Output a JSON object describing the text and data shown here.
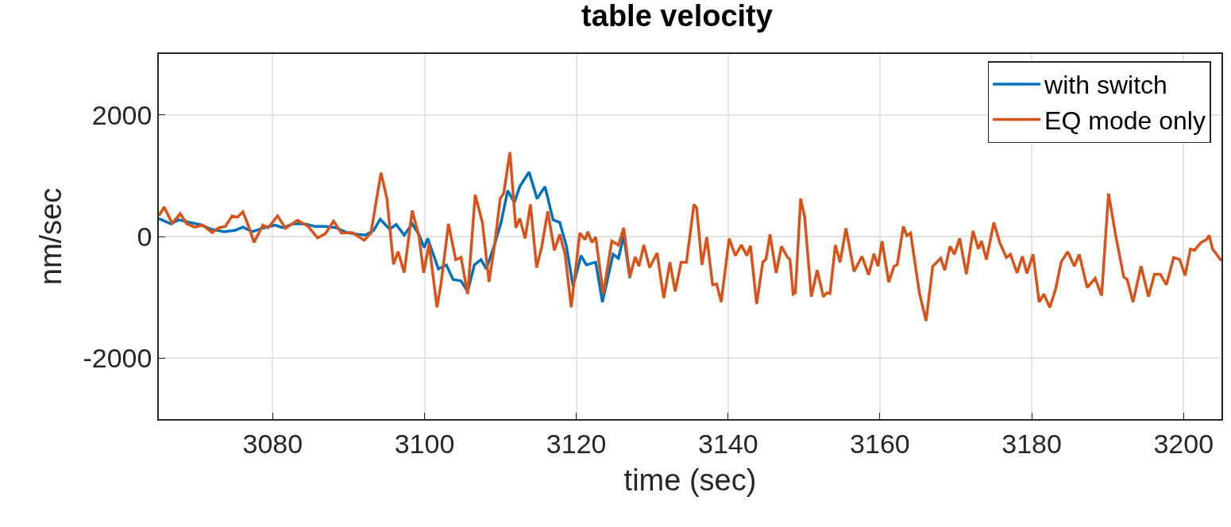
{
  "chart_data": {
    "type": "line",
    "title": "table velocity",
    "xlabel": "time (sec)",
    "ylabel": "nm/sec",
    "xlim": [
      3065,
      3205
    ],
    "xticks": [
      3080,
      3100,
      3120,
      3140,
      3160,
      3180,
      3200
    ],
    "ylim": [
      -3000,
      3000
    ],
    "yticks": [
      -2000,
      0,
      2000
    ],
    "grid": true,
    "legend": "top right",
    "line_style": "solid",
    "series": [
      {
        "name": "with switch",
        "color": "#0072bd",
        "x": [
          3065,
          3066.58,
          3067.63,
          3069.04,
          3070.44,
          3071.85,
          3073.61,
          3075.01,
          3076.07,
          3077.3,
          3078.88,
          3080.28,
          3081.34,
          3082.74,
          3084.15,
          3085.56,
          3086.96,
          3088.37,
          3089.77,
          3091.18,
          3092.23,
          3093.29,
          3094.17,
          3095.4,
          3096.28,
          3097.33,
          3098.38,
          3099.26,
          3099.96,
          3100.42,
          3101.83,
          3102.88,
          3103.76,
          3104.81,
          3105.69,
          3106.57,
          3107.45,
          3108.15,
          3109.21,
          3110.09,
          3110.96,
          3111.84,
          3112.55,
          3113.78,
          3114.83,
          3115.88,
          3116.94,
          3117.82,
          3118.7,
          3119.57,
          3120.63,
          3121.33,
          3122.56,
          3123.44,
          3124.85,
          3125.55,
          3126.25,
          3127.06
        ],
        "values": [
          297,
          209,
          275,
          231,
          196,
          122,
          79,
          100,
          153,
          79,
          144,
          188,
          144,
          209,
          209,
          166,
          166,
          144,
          65,
          35,
          22,
          100,
          284,
          122,
          196,
          22,
          209,
          35,
          -183,
          -31,
          -532,
          -467,
          -707,
          -729,
          -903,
          -467,
          -380,
          -532,
          -140,
          231,
          755,
          558,
          820,
          1060,
          624,
          820,
          275,
          231,
          -161,
          -816,
          -314,
          -467,
          -423,
          -1077,
          -292,
          -358,
          13,
          -685
        ]
      },
      {
        "name": "EQ mode only",
        "color": "#d95319",
        "x": [
          3065,
          3065.7,
          3066.75,
          3067.81,
          3068.69,
          3069.74,
          3070.8,
          3072.03,
          3072.9,
          3073.78,
          3074.66,
          3075.36,
          3076.07,
          3076.77,
          3077.54,
          3078.7,
          3079.41,
          3080.64,
          3081.69,
          3083.27,
          3084.68,
          3085.91,
          3086.96,
          3088.02,
          3089.07,
          3090.48,
          3092.06,
          3092.94,
          3094.27,
          3095.05,
          3095.92,
          3096.52,
          3097.33,
          3098.38,
          3099.26,
          3099.89,
          3100.6,
          3101.65,
          3102.18,
          3103.16,
          3104.11,
          3104.81,
          3105.69,
          3106.68,
          3107.63,
          3108.5,
          3109.21,
          3109.98,
          3110.44,
          3111.25,
          3112.03,
          3112.55,
          3113.26,
          3113.96,
          3114.77,
          3115.46,
          3116.24,
          3117.11,
          3117.82,
          3118.52,
          3119.33,
          3120.46,
          3121.16,
          3121.51,
          3122.04,
          3122.56,
          3123.55,
          3124.68,
          3125.55,
          3126.25,
          3127.06,
          3127.76,
          3128.26,
          3128.89,
          3129.66,
          3130.64,
          3131.52,
          3132.33,
          3133.03,
          3133.81,
          3134.51,
          3135.5,
          3135.85,
          3136.56,
          3137.19,
          3137.96,
          3138.49,
          3139.09,
          3140.14,
          3140.95,
          3141.76,
          3142.46,
          3142.95,
          3143.76,
          3144.57,
          3144.99,
          3145.52,
          3146.33,
          3147.03,
          3147.8,
          3148.15,
          3148.57,
          3148.86,
          3149.56,
          3150.09,
          3150.96,
          3151.74,
          3152.55,
          3153.0,
          3153.42,
          3154.13,
          3154.76,
          3155.53,
          3156.59,
          3157.64,
          3158.52,
          3159.22,
          3159.75,
          3160.28,
          3161.16,
          3161.86,
          3162.28,
          3163.09,
          3163.55,
          3164.04,
          3165.2,
          3166.08,
          3166.96,
          3168.01,
          3168.54,
          3169.24,
          3169.81,
          3170.51,
          3171.39,
          3172.27,
          3172.97,
          3173.39,
          3174.03,
          3175.01,
          3175.78,
          3176.66,
          3177.19,
          3178.07,
          3178.77,
          3179.37,
          3180.18,
          3180.98,
          3181.58,
          3182.39,
          3183.16,
          3183.87,
          3184.74,
          3185.62,
          3186.26,
          3187.31,
          3188.36,
          3189.21,
          3190.12,
          3191.07,
          3192.12,
          3192.58,
          3193.35,
          3194.41,
          3195.39,
          3196.17,
          3196.94,
          3197.75,
          3198.7,
          3199.5,
          3200.21,
          3200.91,
          3201.44,
          3202.32,
          3203.02,
          3203.37,
          3203.83,
          3205
        ],
        "values": [
          340,
          484,
          218,
          375,
          209,
          153,
          188,
          65,
          144,
          166,
          340,
          318,
          406,
          188,
          -96,
          188,
          144,
          340,
          135,
          266,
          166,
          -22,
          48,
          253,
          57,
          65,
          -61,
          57,
          1047,
          624,
          -458,
          -249,
          -593,
          427,
          13,
          -598,
          -118,
          -1165,
          -772,
          209,
          -380,
          -345,
          -946,
          685,
          231,
          -746,
          -161,
          624,
          711,
          1387,
          144,
          297,
          -31,
          528,
          -510,
          -161,
          414,
          -227,
          35,
          -292,
          -1165,
          57,
          -52,
          79,
          -96,
          -9,
          -947,
          -74,
          -140,
          144,
          -663,
          -336,
          -489,
          -140,
          -511,
          -271,
          -1012,
          -423,
          -903,
          -423,
          -423,
          528,
          471,
          -467,
          -9,
          -794,
          -781,
          -1077,
          -31,
          -314,
          -140,
          -314,
          -153,
          -1108,
          -423,
          -371,
          35,
          -598,
          -161,
          -336,
          -380,
          -947,
          -925,
          624,
          318,
          -990,
          -554,
          -990,
          -925,
          -938,
          -140,
          -423,
          135,
          -576,
          -327,
          -632,
          -283,
          -489,
          -74,
          -751,
          -489,
          -467,
          166,
          13,
          57,
          -925,
          -1387,
          -489,
          -358,
          -554,
          -161,
          -292,
          -31,
          -620,
          92,
          -205,
          -74,
          -380,
          231,
          -96,
          -345,
          -292,
          -598,
          -327,
          -606,
          -292,
          -1077,
          -946,
          -1164,
          -860,
          -423,
          -249,
          -489,
          -292,
          -838,
          -685,
          -969,
          707,
          13,
          -663,
          -707,
          -1077,
          -489,
          -990,
          -620,
          -620,
          -794,
          -345,
          -380,
          -642,
          -205,
          -227,
          -96,
          -52,
          22,
          -205,
          -400
        ]
      }
    ]
  }
}
